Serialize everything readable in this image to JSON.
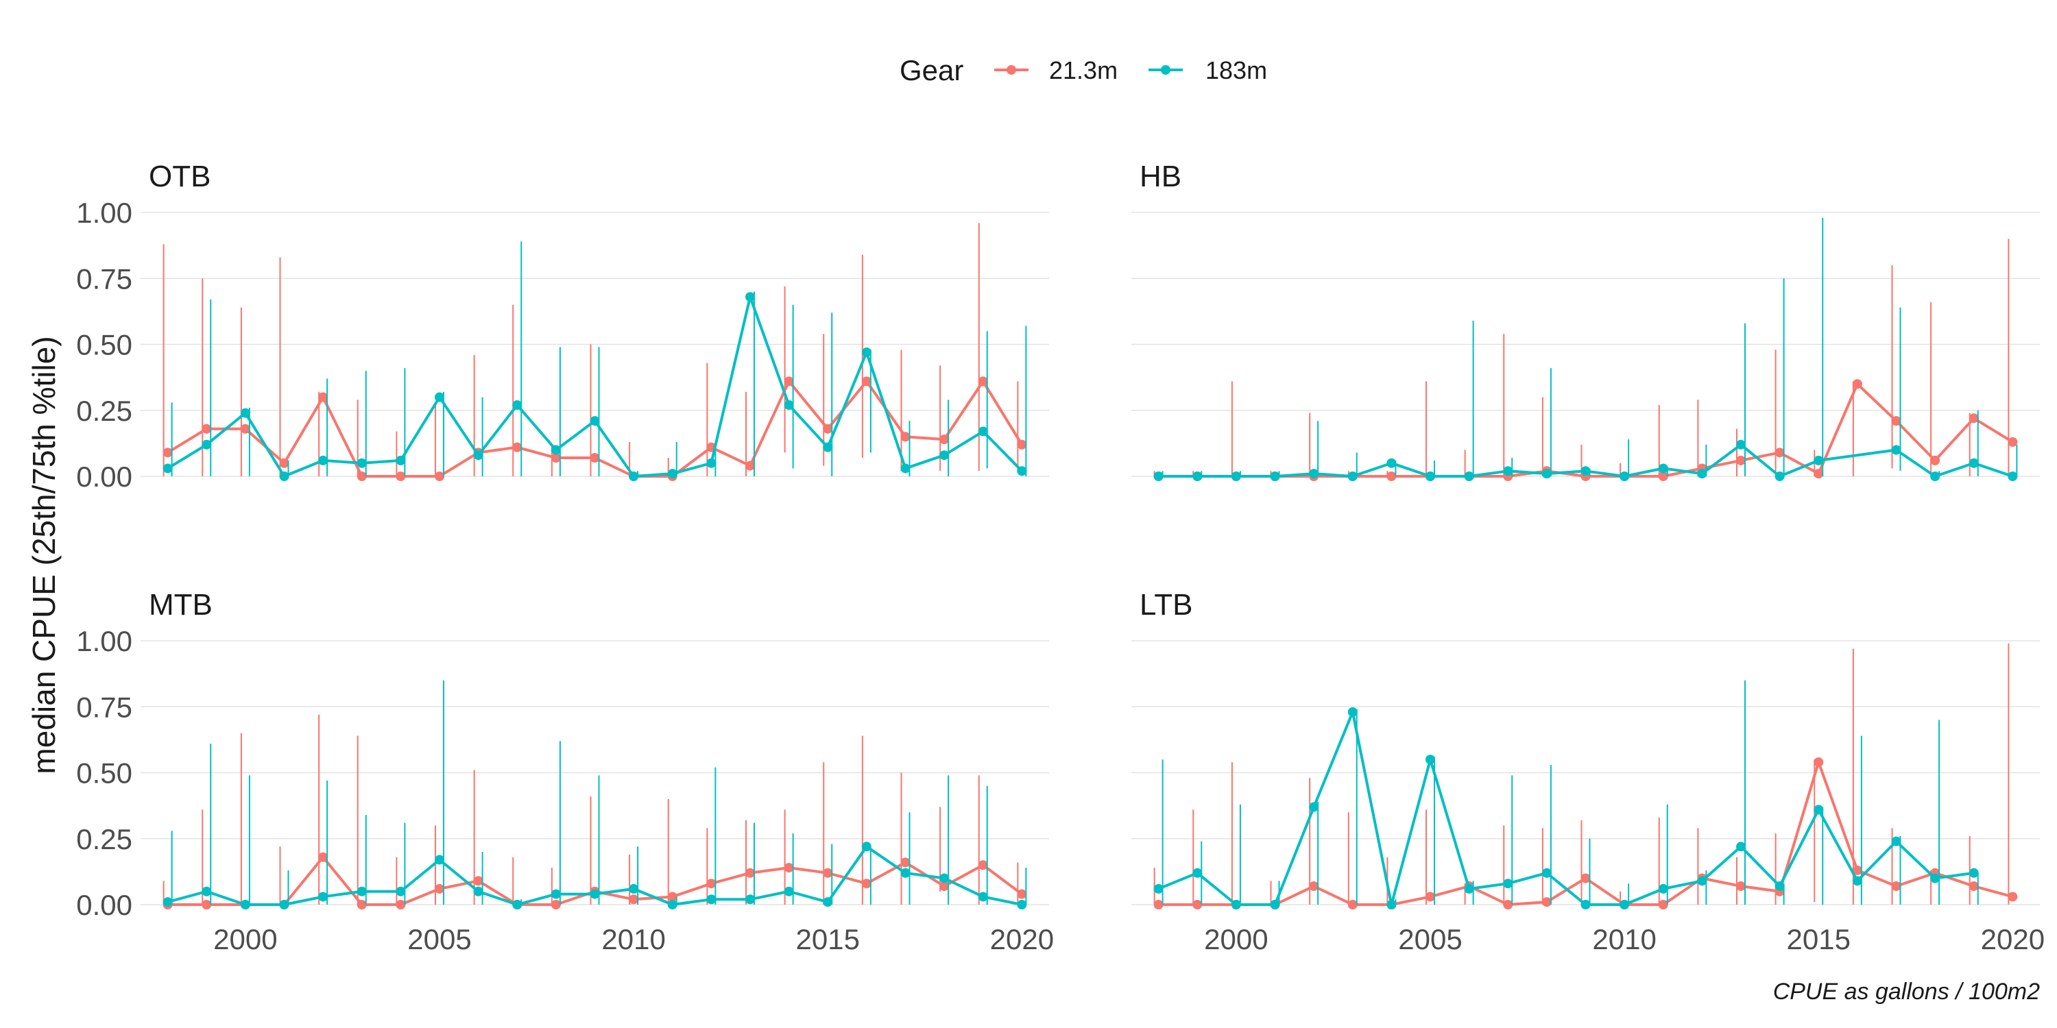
{
  "chart_data": {
    "type": "line",
    "ylabel": "median CPUE (25th/75th %tile)",
    "caption": "CPUE as gallons / 100m2",
    "legend": {
      "title": "Gear",
      "position": "top"
    },
    "colors": {
      "21.3m": "#F8766D",
      "183m": "#00BFC4"
    },
    "x_ticks": [
      2000,
      2005,
      2010,
      2015,
      2020
    ],
    "y_ticks": [
      "0.00",
      "0.25",
      "0.50",
      "0.75",
      "1.00"
    ],
    "xlim": [
      1997.3,
      2020.7
    ],
    "ylim": [
      0,
      1.0
    ],
    "grid": true,
    "panels": [
      {
        "title": "OTB",
        "series": [
          {
            "name": "21.3m",
            "x": [
              1998,
              1999,
              2000,
              2001,
              2002,
              2003,
              2004,
              2005,
              2006,
              2007,
              2008,
              2009,
              2010,
              2011,
              2012,
              2013,
              2014,
              2015,
              2016,
              2017,
              2018,
              2019,
              2020
            ],
            "y": [
              0.09,
              0.18,
              0.18,
              0.05,
              0.3,
              0.0,
              0.0,
              0.0,
              0.09,
              0.11,
              0.07,
              0.07,
              0.0,
              0.0,
              0.11,
              0.04,
              0.36,
              0.18,
              0.36,
              0.15,
              0.14,
              0.36,
              0.12
            ],
            "lower": [
              0,
              0,
              0,
              0,
              0,
              0,
              0,
              0,
              0,
              0,
              0,
              0,
              0,
              0,
              0,
              0,
              0.09,
              0.04,
              0.07,
              0.02,
              0.02,
              0.02,
              0.02
            ],
            "upper": [
              0.88,
              0.75,
              0.64,
              0.83,
              0.32,
              0.29,
              0.17,
              0.28,
              0.46,
              0.65,
              0.12,
              0.5,
              0.13,
              0.07,
              0.43,
              0.32,
              0.72,
              0.54,
              0.84,
              0.48,
              0.42,
              0.96,
              0.36
            ]
          },
          {
            "name": "183m",
            "x": [
              1998,
              1999,
              2000,
              2001,
              2002,
              2003,
              2004,
              2005,
              2006,
              2007,
              2008,
              2009,
              2010,
              2011,
              2012,
              2013,
              2014,
              2015,
              2016,
              2017,
              2018,
              2019,
              2020
            ],
            "y": [
              0.03,
              0.12,
              0.24,
              0.0,
              0.06,
              0.05,
              0.06,
              0.3,
              0.08,
              0.27,
              0.1,
              0.21,
              0.0,
              0.01,
              0.05,
              0.68,
              0.27,
              0.11,
              0.47,
              0.03,
              0.08,
              0.17,
              0.02
            ],
            "lower": [
              0,
              0,
              0,
              0,
              0,
              0,
              0,
              0,
              0,
              0,
              0,
              0,
              0,
              0,
              0,
              0,
              0.03,
              0,
              0.09,
              0,
              0,
              0.03,
              0
            ],
            "upper": [
              0.28,
              0.67,
              0.26,
              0.06,
              0.37,
              0.4,
              0.41,
              0.32,
              0.3,
              0.89,
              0.49,
              0.49,
              0.02,
              0.13,
              0.1,
              0.7,
              0.65,
              0.62,
              0.48,
              0.21,
              0.29,
              0.55,
              0.57
            ]
          }
        ]
      },
      {
        "title": "HB",
        "series": [
          {
            "name": "21.3m",
            "x": [
              1998,
              1999,
              2000,
              2001,
              2002,
              2003,
              2004,
              2005,
              2006,
              2007,
              2008,
              2009,
              2010,
              2011,
              2012,
              2013,
              2014,
              2015,
              2016,
              2017,
              2018,
              2019,
              2020
            ],
            "y": [
              0.0,
              0.0,
              0.0,
              0.0,
              0.0,
              0.0,
              0.0,
              0.0,
              0.0,
              0.0,
              0.02,
              0.0,
              0.0,
              0.0,
              0.03,
              0.06,
              0.09,
              0.01,
              0.35,
              0.21,
              0.06,
              0.22,
              0.13
            ],
            "lower": [
              0,
              0,
              0,
              0,
              0,
              0,
              0,
              0,
              0,
              0,
              0,
              0,
              0,
              0,
              0,
              0,
              0,
              0,
              0,
              0.03,
              0,
              0,
              0
            ],
            "upper": [
              0.02,
              0.02,
              0.36,
              0.02,
              0.24,
              0.02,
              0.02,
              0.36,
              0.1,
              0.54,
              0.3,
              0.12,
              0.05,
              0.27,
              0.29,
              0.18,
              0.48,
              0.1,
              0.36,
              0.8,
              0.66,
              0.24,
              0.9
            ]
          },
          {
            "name": "183m",
            "x": [
              1998,
              1999,
              2000,
              2001,
              2002,
              2003,
              2004,
              2005,
              2006,
              2007,
              2008,
              2009,
              2010,
              2011,
              2012,
              2013,
              2014,
              2015,
              2017,
              2018,
              2019,
              2020
            ],
            "y": [
              0.0,
              0.0,
              0.0,
              0.0,
              0.01,
              0.0,
              0.05,
              0.0,
              0.0,
              0.02,
              0.01,
              0.02,
              0.0,
              0.03,
              0.01,
              0.12,
              0.0,
              0.06,
              0.1,
              0.0,
              0.05,
              0.0
            ],
            "lower": [
              0,
              0,
              0,
              0,
              0,
              0,
              0,
              0,
              0,
              0,
              0,
              0,
              0,
              0,
              0,
              0,
              0,
              0,
              0.02,
              0,
              0,
              0
            ],
            "upper": [
              0.02,
              0.02,
              0.02,
              0.02,
              0.21,
              0.09,
              0.06,
              0.06,
              0.59,
              0.07,
              0.41,
              0.03,
              0.14,
              0.03,
              0.12,
              0.58,
              0.75,
              0.98,
              0.64,
              0.02,
              0.25,
              0.12
            ]
          }
        ]
      },
      {
        "title": "MTB",
        "series": [
          {
            "name": "21.3m",
            "x": [
              1998,
              1999,
              2000,
              2001,
              2002,
              2003,
              2004,
              2005,
              2006,
              2007,
              2008,
              2009,
              2010,
              2011,
              2012,
              2013,
              2014,
              2015,
              2016,
              2017,
              2018,
              2019,
              2020
            ],
            "y": [
              0.0,
              0.0,
              0.0,
              0.0,
              0.18,
              0.0,
              0.0,
              0.06,
              0.09,
              0.0,
              0.0,
              0.05,
              0.02,
              0.03,
              0.08,
              0.12,
              0.14,
              0.12,
              0.08,
              0.16,
              0.07,
              0.15,
              0.04
            ],
            "lower": [
              0,
              0,
              0,
              0,
              0,
              0,
              0,
              0,
              0,
              0,
              0,
              0,
              0,
              0,
              0,
              0,
              0,
              0,
              0,
              0,
              0.05,
              0,
              0
            ],
            "upper": [
              0.09,
              0.36,
              0.65,
              0.22,
              0.72,
              0.64,
              0.18,
              0.3,
              0.51,
              0.18,
              0.14,
              0.41,
              0.19,
              0.4,
              0.29,
              0.32,
              0.36,
              0.54,
              0.64,
              0.5,
              0.37,
              0.49,
              0.16
            ]
          },
          {
            "name": "183m",
            "x": [
              1998,
              1999,
              2000,
              2001,
              2002,
              2003,
              2004,
              2005,
              2006,
              2007,
              2008,
              2009,
              2010,
              2011,
              2012,
              2013,
              2014,
              2015,
              2016,
              2017,
              2018,
              2019,
              2020
            ],
            "y": [
              0.01,
              0.05,
              0.0,
              0.0,
              0.03,
              0.05,
              0.05,
              0.17,
              0.05,
              0.0,
              0.04,
              0.04,
              0.06,
              0.0,
              0.02,
              0.02,
              0.05,
              0.01,
              0.22,
              0.12,
              0.1,
              0.03,
              0.0
            ],
            "lower": [
              0,
              0,
              0,
              0,
              0,
              0,
              0,
              0,
              0,
              0,
              0,
              0,
              0,
              0,
              0,
              0,
              0,
              0,
              0,
              0,
              0,
              0,
              0
            ],
            "upper": [
              0.28,
              0.61,
              0.49,
              0.13,
              0.47,
              0.34,
              0.31,
              0.85,
              0.2,
              0.02,
              0.62,
              0.49,
              0.22,
              0.03,
              0.52,
              0.31,
              0.27,
              0.23,
              0.21,
              0.35,
              0.49,
              0.45,
              0.14
            ]
          }
        ]
      },
      {
        "title": "LTB",
        "series": [
          {
            "name": "21.3m",
            "x": [
              1998,
              1999,
              2000,
              2001,
              2002,
              2003,
              2004,
              2005,
              2006,
              2007,
              2008,
              2009,
              2010,
              2011,
              2012,
              2013,
              2014,
              2015,
              2016,
              2017,
              2018,
              2019,
              2020
            ],
            "y": [
              0.0,
              0.0,
              0.0,
              0.0,
              0.07,
              0.0,
              0.0,
              0.03,
              0.07,
              0.0,
              0.01,
              0.1,
              0.0,
              0.0,
              0.1,
              0.07,
              0.05,
              0.54,
              0.13,
              0.07,
              0.12,
              0.07,
              0.03
            ],
            "lower": [
              0,
              0,
              0,
              0,
              0,
              0,
              0,
              0,
              0,
              0,
              0,
              0,
              0,
              0,
              0,
              0,
              0,
              0.01,
              0,
              0,
              0,
              0,
              0
            ],
            "upper": [
              0.14,
              0.36,
              0.54,
              0.09,
              0.48,
              0.35,
              0.18,
              0.36,
              0.08,
              0.3,
              0.29,
              0.32,
              0.05,
              0.33,
              0.29,
              0.18,
              0.27,
              0.55,
              0.97,
              0.29,
              0.13,
              0.26,
              0.99
            ]
          },
          {
            "name": "183m",
            "x": [
              1998,
              1999,
              2000,
              2001,
              2002,
              2003,
              2004,
              2005,
              2006,
              2007,
              2008,
              2009,
              2010,
              2011,
              2012,
              2013,
              2014,
              2015,
              2016,
              2017,
              2018,
              2019
            ],
            "y": [
              0.06,
              0.12,
              0.0,
              0.0,
              0.37,
              0.73,
              0.0,
              0.55,
              0.06,
              0.08,
              0.12,
              0.0,
              0.0,
              0.06,
              0.09,
              0.22,
              0.07,
              0.36,
              0.09,
              0.24,
              0.1,
              0.12
            ],
            "lower": [
              0,
              0,
              0,
              0,
              0,
              0,
              0,
              0,
              0,
              0,
              0,
              0,
              0,
              0,
              0,
              0,
              0,
              0,
              0,
              0,
              0,
              0
            ],
            "upper": [
              0.55,
              0.24,
              0.38,
              0.09,
              0.39,
              0.74,
              0.02,
              0.56,
              0.09,
              0.49,
              0.53,
              0.25,
              0.08,
              0.38,
              0.13,
              0.85,
              0.08,
              0.37,
              0.64,
              0.26,
              0.7,
              0.12
            ]
          }
        ]
      }
    ]
  }
}
